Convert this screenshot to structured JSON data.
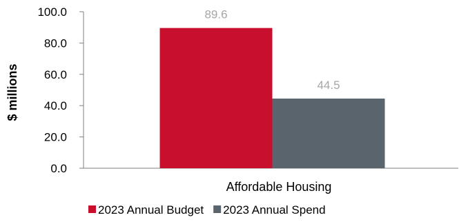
{
  "chart_data": {
    "type": "bar",
    "categories": [
      "Affordable Housing"
    ],
    "series": [
      {
        "name": "2023 Annual Budget",
        "values": [
          89.6
        ],
        "color": "#c8102e"
      },
      {
        "name": "2023 Annual Spend",
        "values": [
          44.5
        ],
        "color": "#59646c"
      }
    ],
    "data_labels": [
      "89.6",
      "44.5"
    ],
    "title": "",
    "xlabel": "",
    "ylabel": "$ millions",
    "ylim": [
      0,
      100
    ],
    "yticks": [
      "0.0",
      "20.0",
      "40.0",
      "60.0",
      "80.0",
      "100.0"
    ],
    "grid": false,
    "legend_position": "bottom",
    "axis_color": "#7f7f7f",
    "data_label_color": "#a6a6a6"
  }
}
